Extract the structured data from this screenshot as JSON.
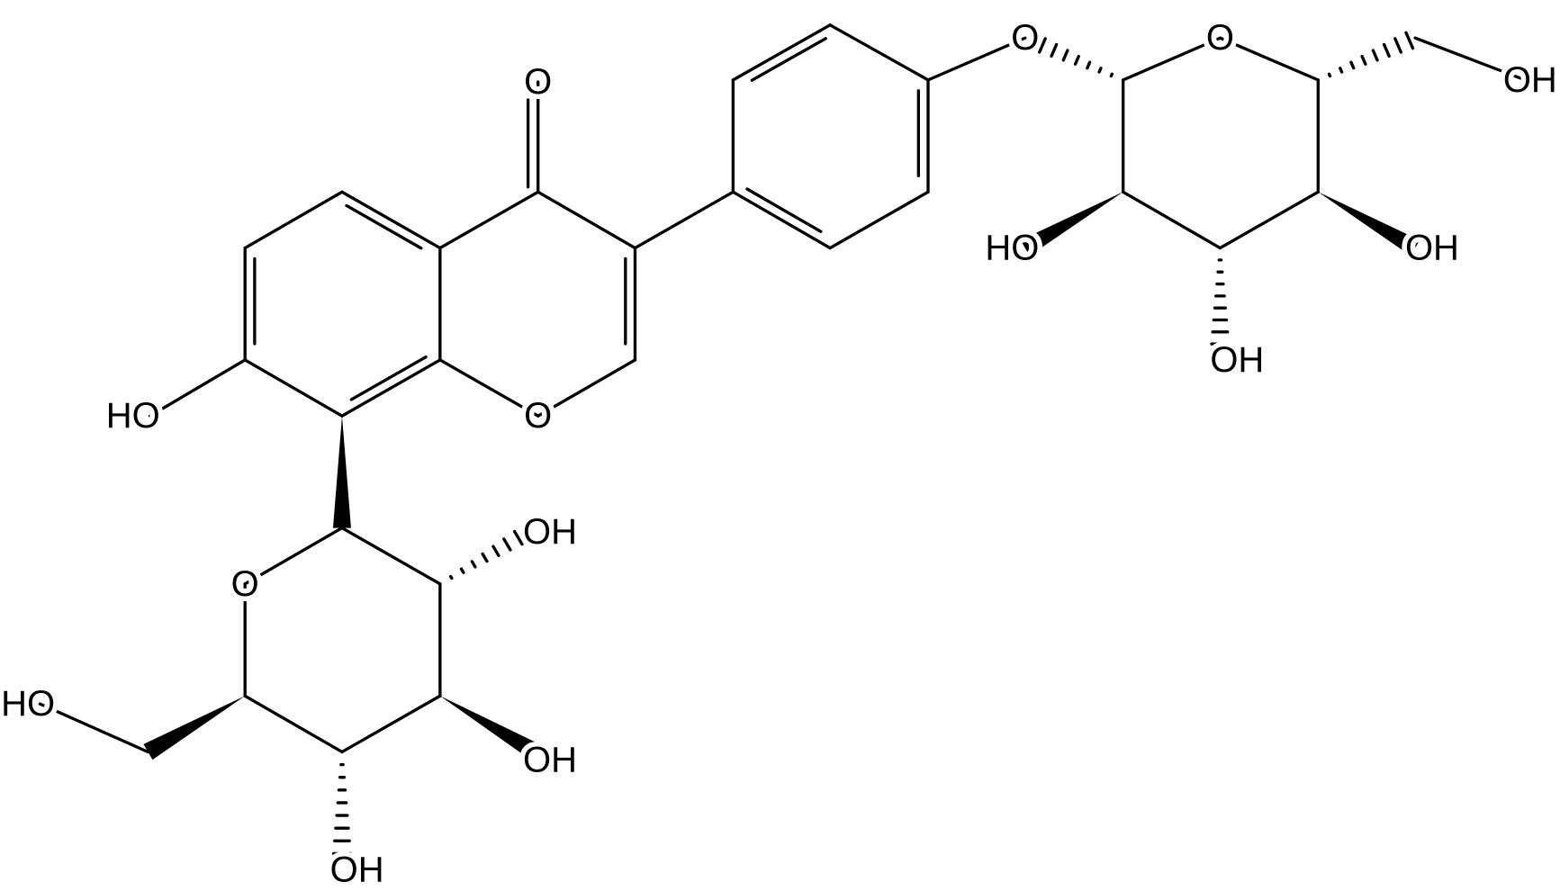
{
  "labels": [
    "O",
    "O",
    "HO",
    "O",
    "O",
    "OH",
    "HO",
    "OH",
    "OH",
    "O",
    "HO",
    "OH",
    "OH",
    "OH"
  ]
}
